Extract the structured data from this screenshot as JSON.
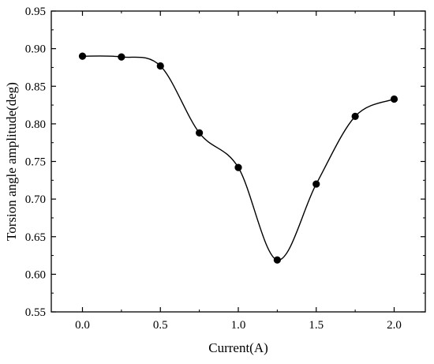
{
  "chart_data": {
    "type": "line",
    "title": "",
    "xlabel": "Current(A)",
    "ylabel": "Torsion angle amplitude(deg)",
    "xlim": [
      -0.2,
      2.2
    ],
    "ylim": [
      0.55,
      0.95
    ],
    "xticks": [
      0.0,
      0.5,
      1.0,
      1.5,
      2.0
    ],
    "xtick_labels": [
      "0.0",
      "0.5",
      "1.0",
      "1.5",
      "2.0"
    ],
    "yticks": [
      0.55,
      0.6,
      0.65,
      0.7,
      0.75,
      0.8,
      0.85,
      0.9,
      0.95
    ],
    "ytick_labels": [
      "0.55",
      "0.60",
      "0.65",
      "0.70",
      "0.75",
      "0.80",
      "0.85",
      "0.90",
      "0.95"
    ],
    "grid": false,
    "legend": "none",
    "line_style": "smooth spline with circular markers",
    "series": [
      {
        "x": [
          0.0,
          0.25,
          0.5,
          0.75,
          1.0,
          1.25,
          1.5,
          1.75,
          2.0
        ],
        "y": [
          0.89,
          0.889,
          0.877,
          0.788,
          0.742,
          0.619,
          0.72,
          0.81,
          0.833
        ],
        "color": "#000000"
      }
    ]
  }
}
